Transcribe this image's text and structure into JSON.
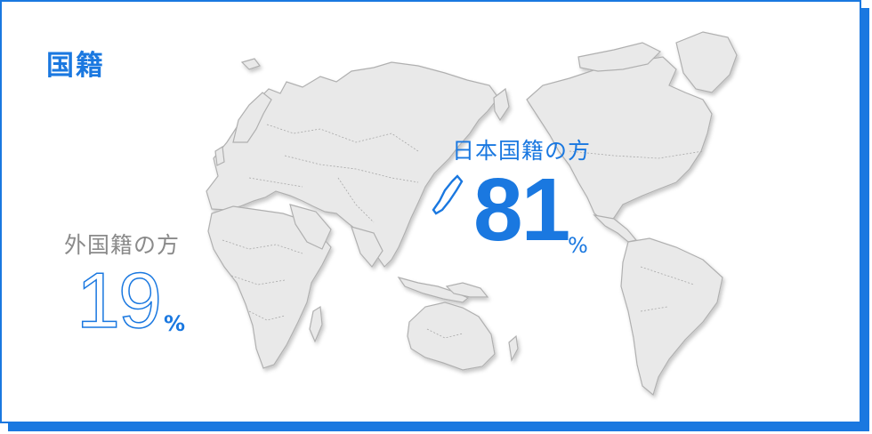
{
  "title": "国籍",
  "japanese": {
    "label": "日本国籍の方",
    "value": "81",
    "unit": "%"
  },
  "foreign": {
    "label": "外国籍の方",
    "value": "19",
    "unit": "%"
  },
  "colors": {
    "accent": "#1a78e0",
    "land": "#e9e9e9",
    "land_border": "#b5b5b5",
    "muted_text": "#8a8a8a"
  }
}
